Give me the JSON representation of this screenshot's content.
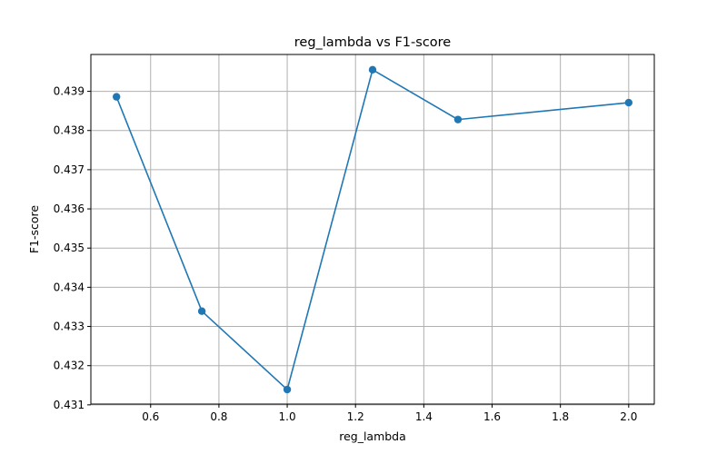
{
  "chart_data": {
    "type": "line",
    "title": "reg_lambda vs F1-score",
    "xlabel": "reg_lambda",
    "ylabel": "F1-score",
    "xlim": [
      0.425,
      2.075
    ],
    "ylim": [
      0.43102,
      0.43994
    ],
    "xticks": [
      0.6,
      0.8,
      1.0,
      1.2,
      1.4,
      1.6,
      1.8,
      2.0
    ],
    "xtick_labels": [
      "0.6",
      "0.8",
      "1.0",
      "1.2",
      "1.4",
      "1.6",
      "1.8",
      "2.0"
    ],
    "yticks": [
      0.431,
      0.432,
      0.433,
      0.434,
      0.435,
      0.436,
      0.437,
      0.438,
      0.439
    ],
    "ytick_labels": [
      "0.431",
      "0.432",
      "0.433",
      "0.434",
      "0.435",
      "0.436",
      "0.437",
      "0.438",
      "0.439"
    ],
    "grid": true,
    "series": [
      {
        "x": [
          0.5,
          0.75,
          1.0,
          1.25,
          1.5,
          2.0
        ],
        "values": [
          0.43886,
          0.43339,
          0.43139,
          0.43955,
          0.43828,
          0.43871
        ],
        "color": "#1f77b4",
        "marker": "circle"
      }
    ]
  }
}
